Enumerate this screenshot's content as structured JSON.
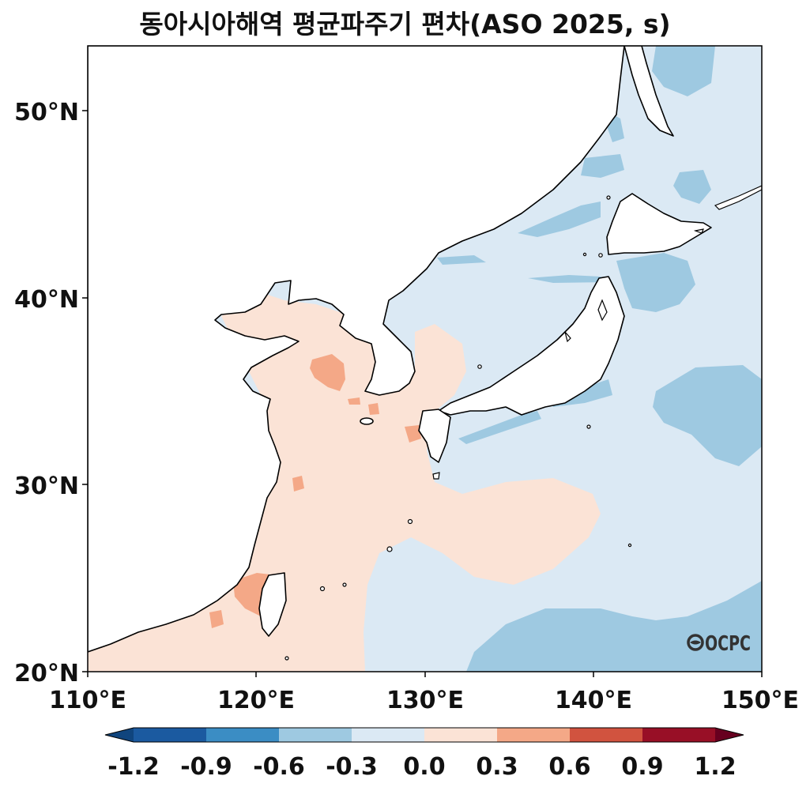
{
  "title": "동아시아해역 평균파주기 편차(ASO 2025, s)",
  "map": {
    "lon_range": [
      110,
      150
    ],
    "lat_range": [
      20,
      53.5
    ],
    "x_ticks": [
      "110°E",
      "120°E",
      "130°E",
      "140°E",
      "150°E"
    ],
    "y_ticks": [
      "20°N",
      "30°N",
      "40°N",
      "50°N"
    ],
    "logo": "OCPC"
  },
  "colorbar": {
    "labels": [
      "-1.2",
      "-0.9",
      "-0.6",
      "-0.3",
      "0.0",
      "0.3",
      "0.6",
      "0.9",
      "1.2"
    ],
    "colors": [
      "#10457e",
      "#1b5aa0",
      "#3b8dc4",
      "#9ec9e1",
      "#dbe9f4",
      "#fbe3d6",
      "#f4a887",
      "#d1533f",
      "#980f26",
      "#67001f"
    ],
    "extend": "both"
  },
  "colors": {
    "land": "#ffffff",
    "coast": "#000000",
    "neg_light": "#dbe9f4",
    "neg_mid": "#9ec9e1",
    "pos_light": "#fbe3d6",
    "pos_mid": "#f4a887"
  }
}
